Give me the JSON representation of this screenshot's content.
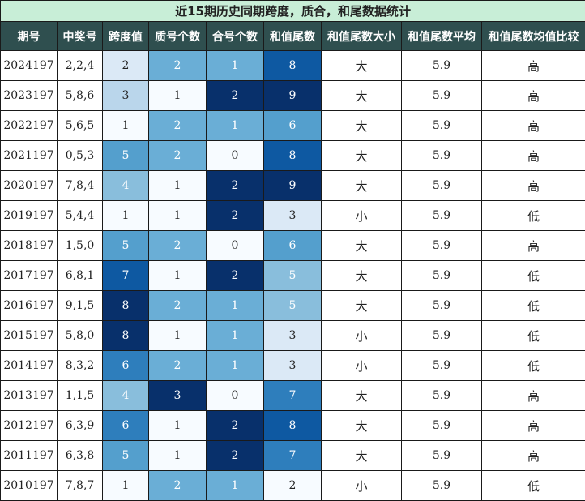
{
  "title": "近15期历史同期跨度，质合，和尾数据统计",
  "headers": [
    "期号",
    "中奖号",
    "跨度值",
    "质号个数",
    "合号个数",
    "和值尾数",
    "和值尾数大小",
    "和值尾数平均",
    "和值尾数均值比较"
  ],
  "rows": [
    [
      "2024197",
      "2,2,4",
      "2",
      "2",
      "1",
      "8",
      "大",
      "5.9",
      "高"
    ],
    [
      "2023197",
      "5,8,6",
      "3",
      "1",
      "2",
      "9",
      "大",
      "5.9",
      "高"
    ],
    [
      "2022197",
      "5,6,5",
      "1",
      "2",
      "1",
      "6",
      "大",
      "5.9",
      "高"
    ],
    [
      "2021197",
      "0,5,3",
      "5",
      "2",
      "0",
      "8",
      "大",
      "5.9",
      "高"
    ],
    [
      "2020197",
      "7,8,4",
      "4",
      "1",
      "2",
      "9",
      "大",
      "5.9",
      "高"
    ],
    [
      "2019197",
      "5,4,4",
      "1",
      "1",
      "2",
      "3",
      "小",
      "5.9",
      "低"
    ],
    [
      "2018197",
      "1,5,0",
      "5",
      "2",
      "0",
      "6",
      "大",
      "5.9",
      "高"
    ],
    [
      "2017197",
      "6,8,1",
      "7",
      "1",
      "2",
      "5",
      "大",
      "5.9",
      "低"
    ],
    [
      "2016197",
      "9,1,5",
      "8",
      "2",
      "1",
      "5",
      "大",
      "5.9",
      "低"
    ],
    [
      "2015197",
      "5,8,0",
      "8",
      "1",
      "1",
      "3",
      "小",
      "5.9",
      "低"
    ],
    [
      "2014197",
      "8,3,2",
      "6",
      "2",
      "1",
      "3",
      "小",
      "5.9",
      "低"
    ],
    [
      "2013197",
      "1,1,5",
      "4",
      "3",
      "0",
      "7",
      "大",
      "5.9",
      "高"
    ],
    [
      "2012197",
      "6,3,9",
      "6",
      "1",
      "2",
      "8",
      "大",
      "5.9",
      "高"
    ],
    [
      "2011197",
      "6,3,8",
      "5",
      "1",
      "2",
      "7",
      "大",
      "5.9",
      "高"
    ],
    [
      "2010197",
      "7,8,7",
      "1",
      "2",
      "1",
      "2",
      "小",
      "5.9",
      "低"
    ]
  ],
  "colors": {
    "title_bg": "#c8eed7",
    "header_bg": "#2f4f4f",
    "span_scale": {
      "1": "#f7fbff",
      "2": "#dbe9f6",
      "3": "#bad6eb",
      "4": "#89bedc",
      "5": "#549fcd",
      "6": "#2e7ebc",
      "7": "#0e59a2",
      "8": "#08306b"
    },
    "prime_scale": {
      "1": "#f7fbff",
      "2": "#6aaed6",
      "3": "#08306b"
    },
    "composite_scale": {
      "0": "#f7fbff",
      "1": "#6aaed6",
      "2": "#08306b"
    },
    "tail_scale": {
      "2": "#f7fbff",
      "3": "#dbe9f6",
      "5": "#89bedc",
      "6": "#549fcd",
      "7": "#2e7ebc",
      "8": "#0e59a2",
      "9": "#08306b"
    }
  }
}
